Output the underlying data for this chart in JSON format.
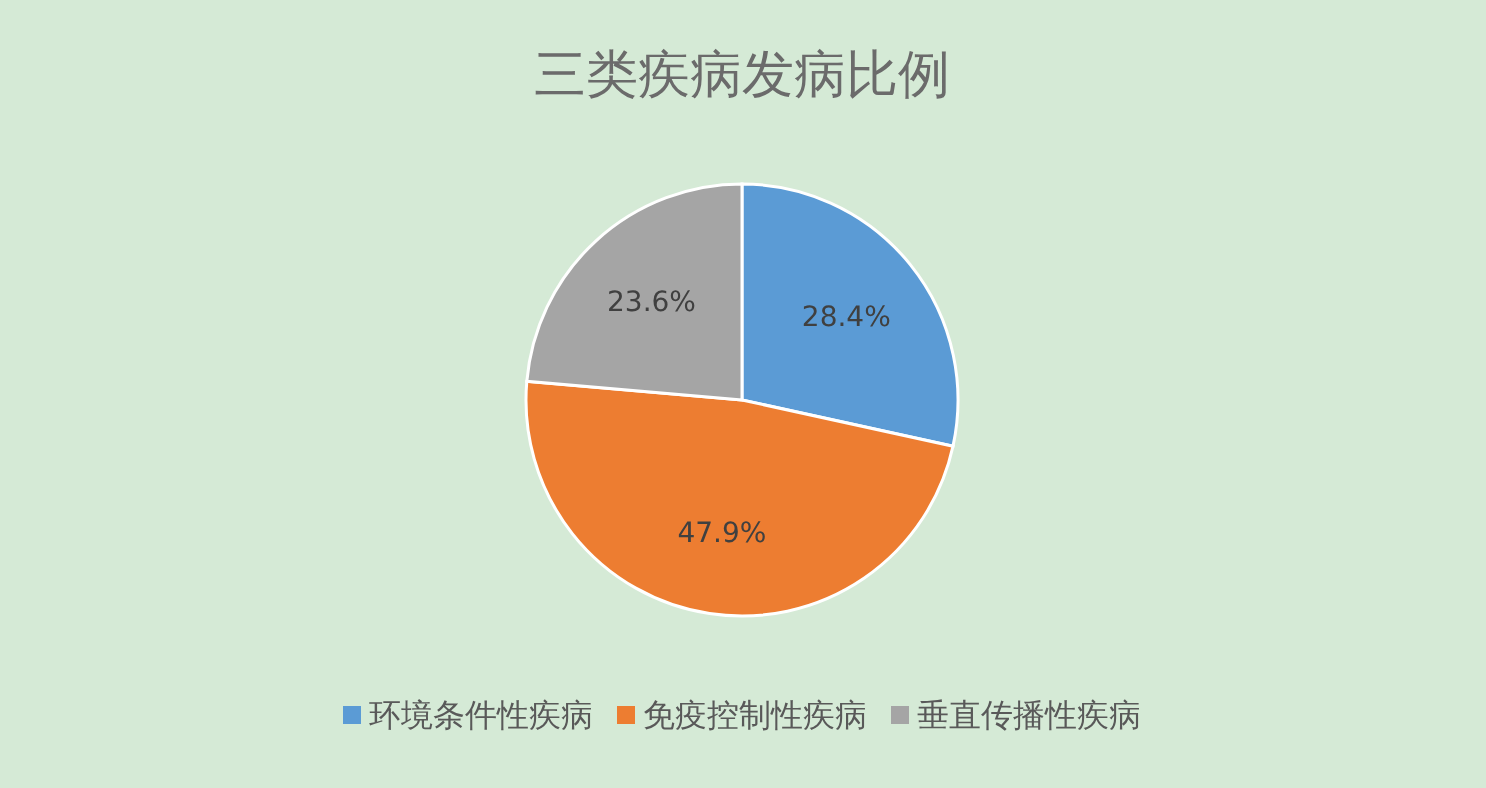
{
  "chart_data": {
    "type": "pie",
    "title": "三类疾病发病比例",
    "categories": [
      "环境条件性疾病",
      "免疫控制性疾病",
      "垂直传播性疾病"
    ],
    "values": [
      28.4,
      47.9,
      23.6
    ],
    "colors": [
      "#5b9bd5",
      "#ed7d31",
      "#a5a5a5"
    ],
    "value_labels": [
      "28.4%",
      "47.9%",
      "23.6%"
    ],
    "legend": "bottom"
  }
}
